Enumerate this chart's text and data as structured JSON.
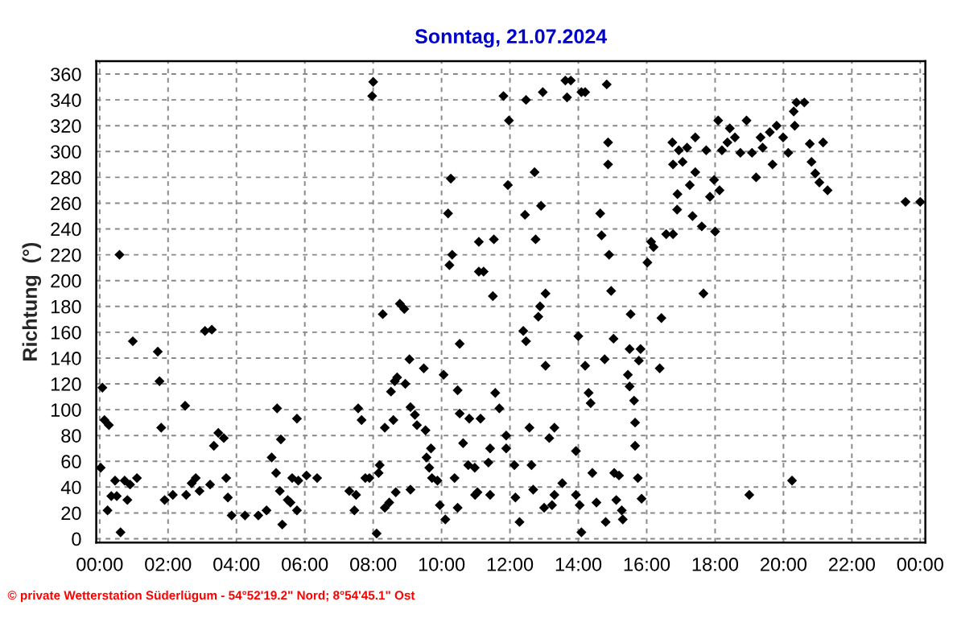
{
  "chart_data": {
    "type": "scatter",
    "title": "Sonntag, 21.07.2024",
    "ylabel": "Richtung  (°)",
    "annotations": [
      "© private Wetterstation Süderlügum - 54°52'19.2\" Nord; 8°54'45.1\" Ost"
    ],
    "xlim": [
      -0.1,
      24.15
    ],
    "ylim": [
      -3,
      370
    ],
    "xticks": [
      {
        "value": 0,
        "label": "00:00"
      },
      {
        "value": 2,
        "label": "02:00"
      },
      {
        "value": 4,
        "label": "04:00"
      },
      {
        "value": 6,
        "label": "06:00"
      },
      {
        "value": 8,
        "label": "08:00"
      },
      {
        "value": 10,
        "label": "10:00"
      },
      {
        "value": 12,
        "label": "12:00"
      },
      {
        "value": 14,
        "label": "14:00"
      },
      {
        "value": 16,
        "label": "16:00"
      },
      {
        "value": 18,
        "label": "18:00"
      },
      {
        "value": 20,
        "label": "20:00"
      },
      {
        "value": 22,
        "label": "22:00"
      },
      {
        "value": 24,
        "label": "00:00"
      }
    ],
    "yticks": [
      0,
      20,
      40,
      60,
      80,
      100,
      120,
      140,
      160,
      180,
      200,
      220,
      240,
      260,
      280,
      300,
      320,
      340,
      360
    ],
    "grid": true,
    "marker": "diamond",
    "series": [
      {
        "color": "#000000",
        "x": [
          0.03,
          0.08,
          0.14,
          0.27,
          0.23,
          0.34,
          0.5,
          0.45,
          0.58,
          0.61,
          0.73,
          0.81,
          0.89,
          0.97,
          1.09,
          1.7,
          1.75,
          1.8,
          1.9,
          2.14,
          2.5,
          2.53,
          2.69,
          2.81,
          2.92,
          3.08,
          3.28,
          3.23,
          3.34,
          3.47,
          3.63,
          3.7,
          3.75,
          3.86,
          4.25,
          4.64,
          4.88,
          5.03,
          5.19,
          5.3,
          5.16,
          5.27,
          5.34,
          5.5,
          5.58,
          5.77,
          5.77,
          5.63,
          5.81,
          6.05,
          6.36,
          7.3,
          7.45,
          7.5,
          7.56,
          7.66,
          7.77,
          7.89,
          7.97,
          8.0,
          8.1,
          8.19,
          8.16,
          8.28,
          8.34,
          8.34,
          8.47,
          8.52,
          8.63,
          8.7,
          8.66,
          8.59,
          8.78,
          8.91,
          8.94,
          9.06,
          9.09,
          9.09,
          9.22,
          9.28,
          9.48,
          9.53,
          9.56,
          9.64,
          9.72,
          9.69,
          9.88,
          9.95,
          10.06,
          10.11,
          10.27,
          10.19,
          10.31,
          10.23,
          10.38,
          10.53,
          10.47,
          10.47,
          10.53,
          10.63,
          10.81,
          10.78,
          11.09,
          11.09,
          10.98,
          11.81,
          11.97,
          11.94,
          11.53,
          11.5,
          11.23,
          11.57,
          11.69,
          11.14,
          11.42,
          11.89,
          10.97,
          11.37,
          11.05,
          11.42,
          11.89,
          12.13,
          12.16,
          12.28,
          12.47,
          12.44,
          12.72,
          12.75,
          12.39,
          12.47,
          12.57,
          12.63,
          12.68,
          12.88,
          12.83,
          13.04,
          13.04,
          12.91,
          12.96,
          13.0,
          13.15,
          13.3,
          13.23,
          13.3,
          13.53,
          13.62,
          13.78,
          13.67,
          13.93,
          14.0,
          14.2,
          13.93,
          14.04,
          14.09,
          14.2,
          14.09,
          14.36,
          14.3,
          14.41,
          14.53,
          14.64,
          14.68,
          14.77,
          14.8,
          14.83,
          14.87,
          14.87,
          14.9,
          14.96,
          15.03,
          15.05,
          15.19,
          15.11,
          15.3,
          15.27,
          15.45,
          15.5,
          15.53,
          15.5,
          15.63,
          15.66,
          15.66,
          15.74,
          15.77,
          15.82,
          15.85,
          16.02,
          16.13,
          16.2,
          16.43,
          16.38,
          16.57,
          16.77,
          16.75,
          16.77,
          16.9,
          16.89,
          16.94,
          17.05,
          17.18,
          17.26,
          17.34,
          17.42,
          17.42,
          17.61,
          17.66,
          17.74,
          17.85,
          17.97,
          18.0,
          18.13,
          18.09,
          18.2,
          18.36,
          18.43,
          18.58,
          18.74,
          18.92,
          19.0,
          19.08,
          19.2,
          19.33,
          19.39,
          19.6,
          19.68,
          19.8,
          19.99,
          20.14,
          20.25,
          20.3,
          20.33,
          20.38,
          20.61,
          20.77,
          20.82,
          20.93,
          21.05,
          21.16,
          21.29,
          23.57,
          24.0
        ],
        "values": [
          55,
          117,
          92,
          88,
          22,
          33,
          33,
          45,
          220,
          5,
          45,
          30,
          42,
          153,
          47,
          145,
          122,
          86,
          30,
          34,
          103,
          34,
          43,
          47,
          37,
          161,
          162,
          42,
          72,
          82,
          78,
          47,
          32,
          18,
          18,
          18,
          22,
          63,
          101,
          77,
          51,
          37,
          11,
          30,
          28,
          22,
          93,
          47,
          45,
          49,
          47,
          37,
          22,
          34,
          101,
          92,
          47,
          47,
          343,
          354,
          4,
          57,
          51,
          174,
          86,
          24,
          28,
          114,
          122,
          125,
          36,
          92,
          182,
          178,
          120,
          139,
          38,
          102,
          96,
          88,
          132,
          84,
          63,
          55,
          47,
          70,
          45,
          26,
          127,
          15,
          279,
          252,
          220,
          212,
          47,
          151,
          115,
          24,
          97,
          74,
          93,
          57,
          230,
          207,
          34,
          343,
          324,
          274,
          232,
          188,
          207,
          113,
          101,
          93,
          70,
          70,
          55,
          59,
          36,
          34,
          80,
          57,
          32,
          13,
          340,
          251,
          284,
          232,
          161,
          153,
          86,
          57,
          38,
          180,
          172,
          190,
          134,
          258,
          346,
          24,
          78,
          86,
          26,
          34,
          43,
          355,
          355,
          342,
          68,
          157,
          134,
          34,
          26,
          346,
          346,
          5,
          105,
          113,
          51,
          28,
          252,
          235,
          139,
          13,
          352,
          307,
          290,
          220,
          192,
          155,
          51,
          49,
          30,
          15,
          22,
          127,
          147,
          174,
          118,
          107,
          90,
          72,
          47,
          138,
          147,
          31,
          214,
          230,
          226,
          171,
          132,
          236,
          236,
          307,
          290,
          267,
          255,
          301,
          292,
          303,
          274,
          250,
          311,
          284,
          242,
          190,
          301,
          265,
          278,
          238,
          270,
          324,
          301,
          307,
          318,
          311,
          299,
          324,
          34,
          299,
          280,
          311,
          303,
          315,
          290,
          320,
          311,
          299,
          45,
          331,
          320,
          338,
          338,
          306,
          292,
          283,
          276,
          307,
          270,
          261,
          261
        ]
      }
    ]
  }
}
